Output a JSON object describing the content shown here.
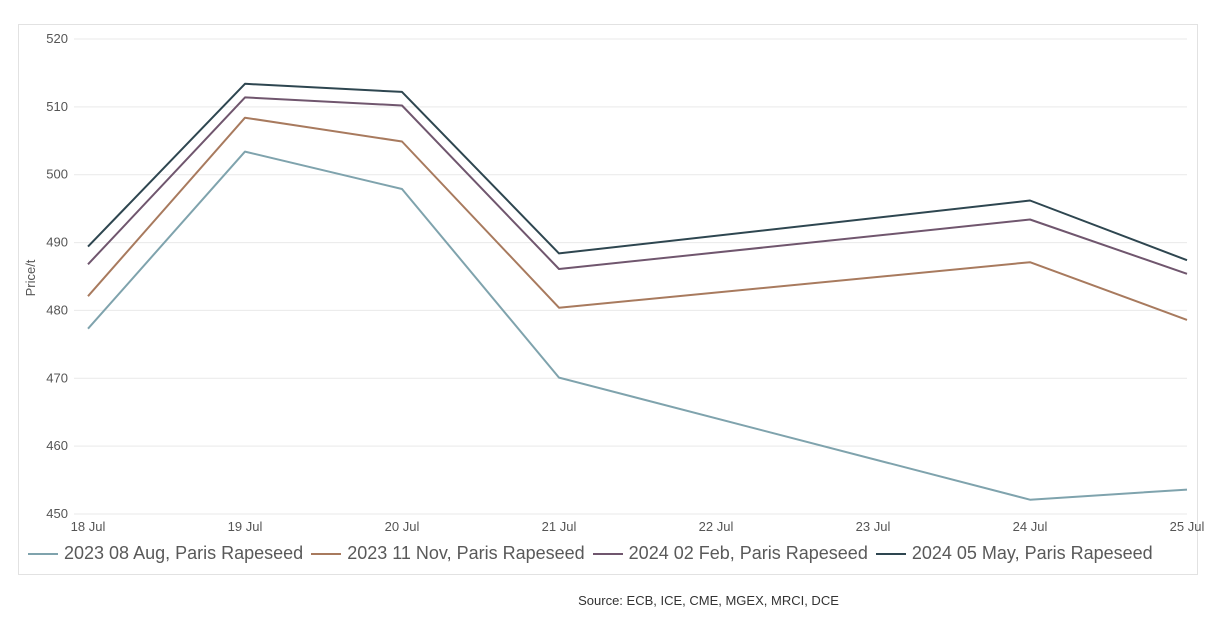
{
  "chart_data": {
    "type": "line",
    "title": "",
    "xlabel": "",
    "ylabel": "Price/t",
    "ylim": [
      450,
      520
    ],
    "yticks": [
      450,
      460,
      470,
      480,
      490,
      500,
      510,
      520
    ],
    "categories": [
      "18 Jul",
      "19 Jul",
      "20 Jul",
      "21 Jul",
      "22 Jul",
      "23 Jul",
      "24 Jul",
      "25 Jul"
    ],
    "grid": true,
    "legend_position": "bottom",
    "series": [
      {
        "name": "2023 08 Aug, Paris Rapeseed",
        "color": "#7fa3ad",
        "values": [
          477.3,
          503.4,
          497.9,
          470.1,
          null,
          null,
          452.1,
          453.6
        ]
      },
      {
        "name": "2023 11 Nov, Paris Rapeseed",
        "color": "#a87a5e",
        "values": [
          482.1,
          508.4,
          504.9,
          480.4,
          null,
          null,
          487.1,
          478.6
        ]
      },
      {
        "name": "2024 02 Feb, Paris Rapeseed",
        "color": "#70566e",
        "values": [
          486.8,
          511.4,
          510.2,
          486.1,
          null,
          null,
          493.4,
          485.4
        ]
      },
      {
        "name": "2024 05 May, Paris Rapeseed",
        "color": "#2e4650",
        "values": [
          489.4,
          513.4,
          512.2,
          488.4,
          null,
          null,
          496.2,
          487.4
        ]
      }
    ]
  },
  "source": "Source: ECB, ICE, CME, MGEX, MRCI, DCE"
}
